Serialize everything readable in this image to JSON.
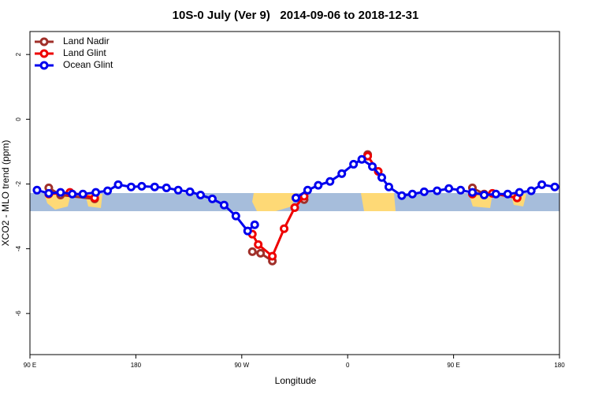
{
  "chart_data": {
    "type": "line",
    "title": "10S-0 July (Ver 9)   2014-09-06 to 2018-12-31",
    "x_label": "Longitude",
    "y_label": "XCO2 - MLO trend (ppm)",
    "xlim": [
      90,
      540
    ],
    "ylim": [
      -7.27,
      2.71
    ],
    "xticks": [
      {
        "value": 90,
        "label": "90 E"
      },
      180,
      {
        "value": 270,
        "label": "90 W"
      },
      {
        "value": 360,
        "label": "0"
      },
      {
        "value": 450,
        "label": "90 E"
      },
      {
        "value": 540,
        "label": "180"
      }
    ],
    "yticks": [
      2,
      0,
      -2,
      -4,
      -6
    ],
    "legend": "top-left",
    "series": [
      {
        "name": "Land Nadir",
        "color": "#a0302a",
        "x": [
          106,
          116,
          145,
          null,
          279,
          286,
          296,
          null,
          323,
          null,
          377,
          null,
          466,
          476,
          null,
          504
        ],
        "values": [
          -2.12,
          -2.34,
          -2.46,
          null,
          -4.09,
          -4.14,
          -4.38,
          null,
          -2.48,
          null,
          -1.09,
          null,
          -2.12,
          -2.31,
          null,
          -2.43
        ]
      },
      {
        "name": "Land Glint",
        "color": "#ee0000",
        "x": [
          106,
          124,
          145,
          null,
          279,
          284,
          296,
          306,
          315,
          323,
          null,
          377,
          386,
          null,
          466,
          483,
          504
        ],
        "values": [
          -2.31,
          -2.26,
          -2.43,
          null,
          -3.55,
          -3.87,
          -4.23,
          -3.38,
          -2.73,
          -2.38,
          null,
          -1.14,
          -1.61,
          null,
          -2.31,
          -2.29,
          -2.43
        ]
      },
      {
        "name": "Ocean Glint",
        "color": "#0000ee",
        "x": [
          96,
          106,
          116,
          126,
          135,
          146,
          156,
          165,
          176,
          185,
          196,
          206,
          216,
          226,
          235,
          245,
          255,
          265,
          275,
          281,
          null,
          316,
          326,
          335,
          345,
          355,
          365,
          372,
          381,
          389,
          395,
          406,
          415,
          425,
          436,
          446,
          456,
          466,
          476,
          486,
          496,
          506,
          516,
          525,
          536
        ],
        "values": [
          -2.19,
          -2.29,
          -2.26,
          -2.31,
          -2.31,
          -2.26,
          -2.21,
          -2.02,
          -2.09,
          -2.07,
          -2.09,
          -2.12,
          -2.19,
          -2.24,
          -2.34,
          -2.46,
          -2.65,
          -2.99,
          -3.45,
          -3.26,
          null,
          -2.43,
          -2.19,
          -2.04,
          -1.92,
          -1.68,
          -1.39,
          -1.24,
          -1.46,
          -1.8,
          -2.09,
          -2.36,
          -2.31,
          -2.24,
          -2.21,
          -2.14,
          -2.19,
          -2.26,
          -2.34,
          -2.31,
          -2.31,
          -2.26,
          -2.21,
          -2.02,
          -2.09
        ]
      }
    ]
  }
}
